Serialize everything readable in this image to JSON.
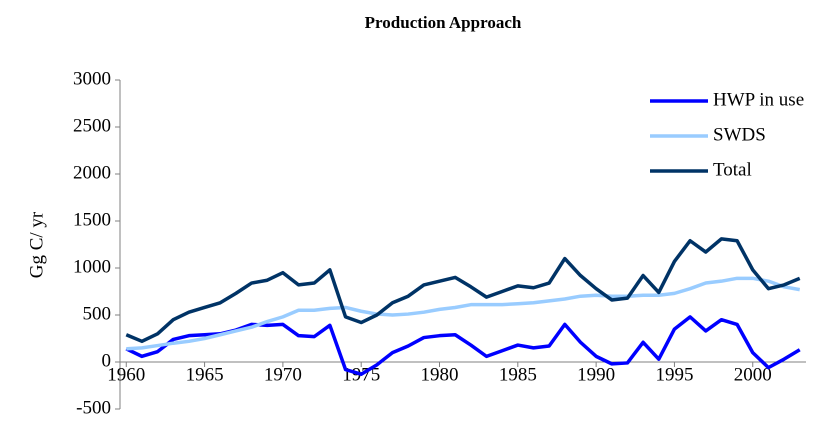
{
  "chart_data": {
    "type": "line",
    "title": "Production Approach",
    "y_label": "Gg C/ yr",
    "x": [
      1960,
      1961,
      1962,
      1963,
      1964,
      1965,
      1966,
      1967,
      1968,
      1969,
      1970,
      1971,
      1972,
      1973,
      1974,
      1975,
      1976,
      1977,
      1978,
      1979,
      1980,
      1981,
      1982,
      1983,
      1984,
      1985,
      1986,
      1987,
      1988,
      1989,
      1990,
      1991,
      1992,
      1993,
      1994,
      1995,
      1996,
      1997,
      1998,
      1999,
      2000,
      2001,
      2002,
      2003
    ],
    "series": [
      {
        "name": "HWP in use",
        "color": "#0000ff",
        "values": [
          140,
          60,
          110,
          240,
          280,
          290,
          300,
          340,
          400,
          390,
          400,
          280,
          270,
          390,
          -80,
          -130,
          -30,
          100,
          170,
          260,
          280,
          290,
          180,
          60,
          120,
          180,
          150,
          170,
          400,
          210,
          60,
          -20,
          -10,
          210,
          30,
          350,
          480,
          330,
          450,
          400,
          100,
          -60,
          30,
          130
        ]
      },
      {
        "name": "SWDS",
        "color": "#99ccff",
        "values": [
          140,
          150,
          175,
          200,
          220,
          250,
          290,
          330,
          370,
          430,
          480,
          550,
          550,
          570,
          580,
          540,
          510,
          500,
          510,
          530,
          560,
          580,
          610,
          610,
          610,
          620,
          630,
          650,
          670,
          700,
          710,
          700,
          700,
          710,
          710,
          730,
          780,
          840,
          860,
          890,
          890,
          860,
          800,
          770
        ]
      },
      {
        "name": "Total",
        "color": "#003366",
        "values": [
          290,
          220,
          300,
          450,
          530,
          580,
          630,
          730,
          840,
          870,
          950,
          820,
          840,
          980,
          480,
          420,
          500,
          630,
          700,
          820,
          860,
          900,
          800,
          690,
          750,
          810,
          790,
          840,
          1100,
          920,
          780,
          660,
          680,
          920,
          740,
          1070,
          1290,
          1170,
          1310,
          1290,
          980,
          780,
          820,
          890
        ]
      }
    ],
    "xlim": [
      1959.6,
      2003.4
    ],
    "xticks": [
      1960,
      1965,
      1970,
      1975,
      1980,
      1985,
      1990,
      1995,
      2000
    ],
    "ylim": [
      -500,
      3000
    ],
    "yticks": [
      -500,
      0,
      500,
      1000,
      1500,
      2000,
      2500,
      3000
    ],
    "grid": false,
    "legend": "top-right"
  }
}
